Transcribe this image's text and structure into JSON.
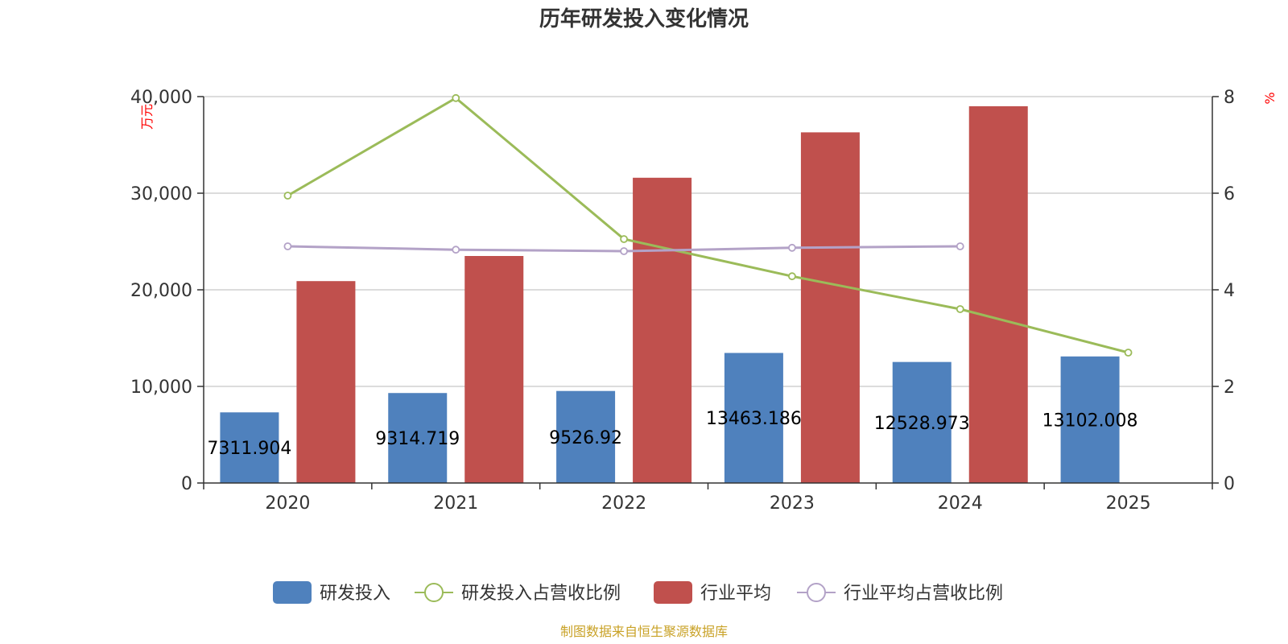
{
  "chart_data": {
    "type": "bar",
    "title": "历年研发投入变化情况",
    "categories": [
      "2020",
      "2021",
      "2022",
      "2023",
      "2024",
      "2025"
    ],
    "y_left": {
      "label": "万元",
      "range": [
        0,
        40000
      ],
      "ticks": [
        0,
        10000,
        20000,
        30000,
        40000
      ],
      "tick_labels": [
        "0",
        "10,000",
        "20,000",
        "30,000",
        "40,000"
      ]
    },
    "y_right": {
      "label": "%",
      "range": [
        0,
        8
      ],
      "ticks": [
        0,
        2,
        4,
        6,
        8
      ],
      "tick_labels": [
        "0",
        "2",
        "4",
        "6",
        "8"
      ]
    },
    "grid": true,
    "legend_position": "bottom",
    "series": [
      {
        "name": "研发投入",
        "kind": "bar",
        "axis": "left",
        "color": "#4f81bd",
        "values": [
          7311.904,
          9314.719,
          9526.92,
          13463.186,
          12528.973,
          13102.008
        ],
        "labels": [
          "7311.904",
          "9314.719",
          "9526.92",
          "13463.186",
          "12528.973",
          "13102.008"
        ]
      },
      {
        "name": "研发投入占营收比例",
        "kind": "line",
        "axis": "right",
        "color": "#9bbb59",
        "values": [
          5.95,
          7.97,
          5.05,
          4.28,
          3.6,
          2.7
        ]
      },
      {
        "name": "行业平均",
        "kind": "bar",
        "axis": "left",
        "color": "#c0504d",
        "values": [
          20900,
          23500,
          31600,
          36300,
          39000,
          null
        ]
      },
      {
        "name": "行业平均占营收比例",
        "kind": "line",
        "axis": "right",
        "color": "#b3a2c7",
        "values": [
          4.9,
          4.83,
          4.8,
          4.87,
          4.9,
          null
        ]
      }
    ],
    "source": "制图数据来自恒生聚源数据库"
  }
}
